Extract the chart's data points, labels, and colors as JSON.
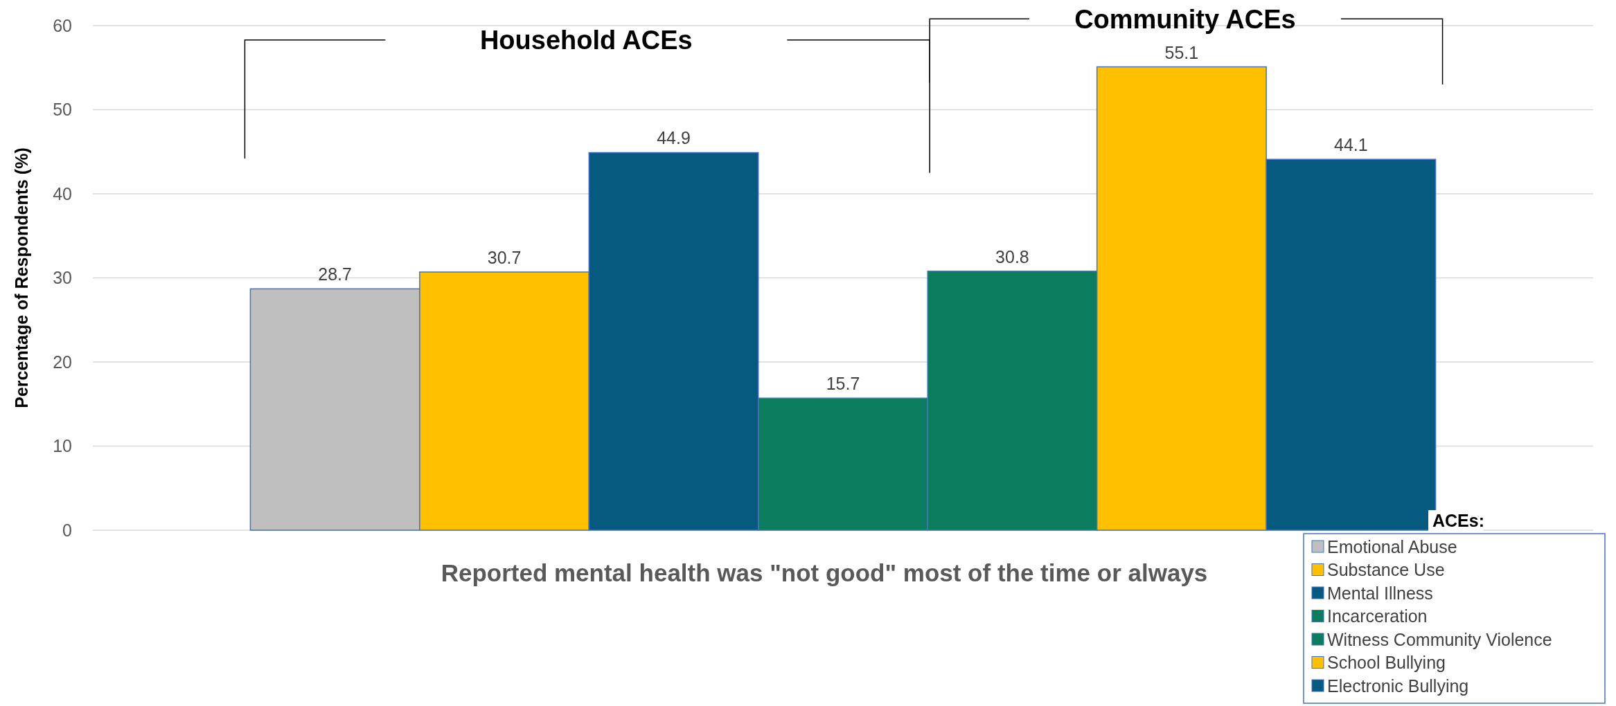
{
  "chart_data": {
    "type": "bar",
    "categories": [
      null
    ],
    "xlabel": "Reported mental health was \"not good\" most of the time or always",
    "ylabel": "Percentage of Respondents (%)",
    "legend_title": "ACEs:",
    "legend": "bottom right",
    "grid": "y",
    "data_labels": true,
    "ylim": [
      0,
      60
    ],
    "yticks": [
      0,
      10,
      20,
      30,
      40,
      50,
      60
    ],
    "annotations": [
      "Household ACEs",
      "Community ACEs"
    ],
    "series": [
      {
        "name": "Emotional Abuse",
        "color": "#bfbfbf",
        "values": [
          28.7
        ]
      },
      {
        "name": "Substance Use",
        "color": "#ffc000",
        "values": [
          30.7
        ]
      },
      {
        "name": "Mental Illness",
        "color": "#065a7f",
        "values": [
          44.9
        ]
      },
      {
        "name": "Incarceration",
        "color": "#0b7d5e",
        "values": [
          15.7
        ]
      },
      {
        "name": "Witness Community Violence",
        "color": "#0b7d5e",
        "values": [
          30.8
        ]
      },
      {
        "name": "School Bullying",
        "color": "#ffc000",
        "values": [
          55.1
        ]
      },
      {
        "name": "Electronic Bullying",
        "color": "#065a7f",
        "values": [
          44.1
        ]
      }
    ]
  }
}
